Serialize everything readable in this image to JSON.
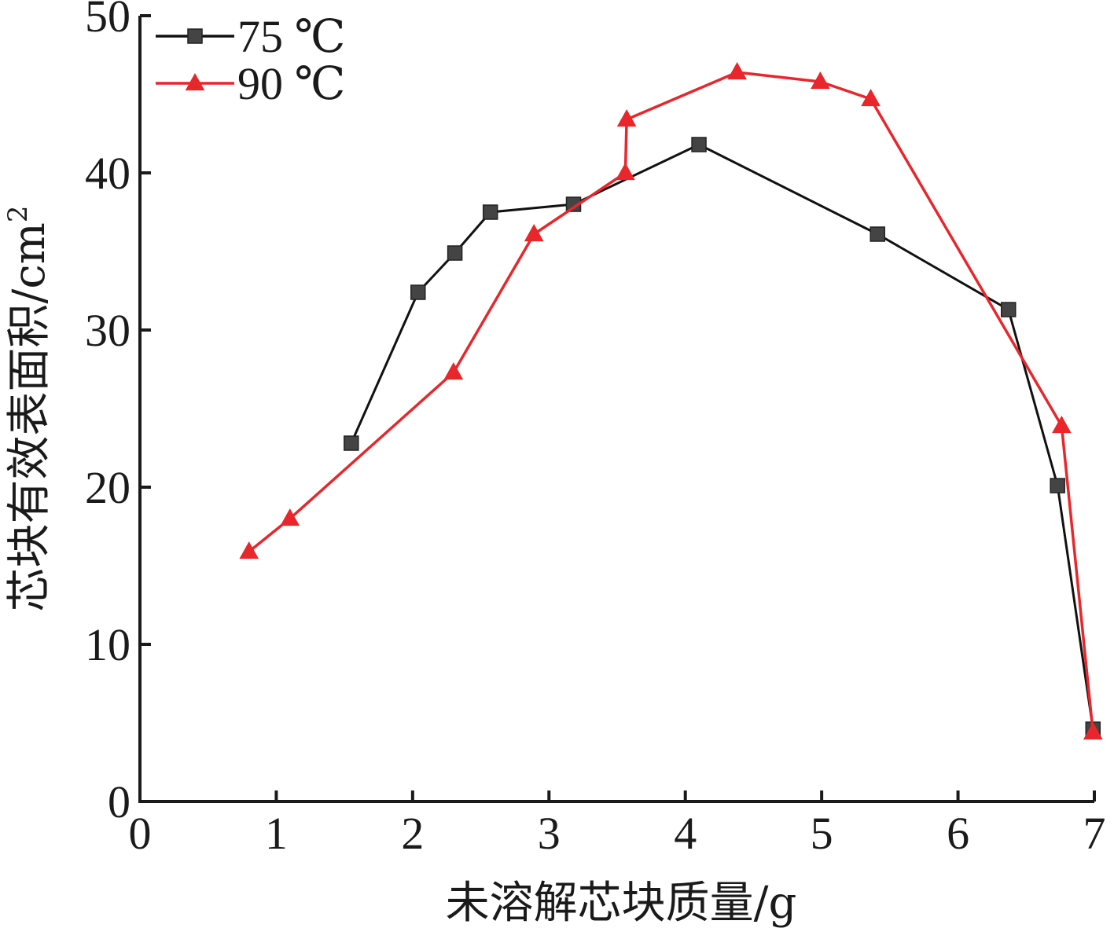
{
  "chart_data": {
    "type": "line",
    "xlabel": "未溶解芯块质量/g",
    "ylabel": "芯块有效表面积/cm",
    "ylabel_sup": "2",
    "xlim": [
      0,
      7
    ],
    "ylim": [
      0,
      50
    ],
    "xticks": [
      0,
      1,
      2,
      3,
      4,
      5,
      6,
      7
    ],
    "yticks": [
      0,
      10,
      20,
      30,
      40,
      50
    ],
    "grid": false,
    "legend_position": "top-left",
    "series": [
      {
        "name": "75 ℃",
        "color": "#111111",
        "marker": "square",
        "marker_color": "#444444",
        "points": [
          {
            "x": 1.55,
            "y": 22.8
          },
          {
            "x": 2.04,
            "y": 32.4
          },
          {
            "x": 2.31,
            "y": 34.9
          },
          {
            "x": 2.57,
            "y": 37.5
          },
          {
            "x": 3.18,
            "y": 38.0
          },
          {
            "x": 4.1,
            "y": 41.8
          },
          {
            "x": 5.41,
            "y": 36.1
          },
          {
            "x": 6.37,
            "y": 31.3
          },
          {
            "x": 6.73,
            "y": 20.1
          },
          {
            "x": 6.99,
            "y": 4.6
          }
        ]
      },
      {
        "name": "90 ℃",
        "color": "#e8262b",
        "marker": "triangle",
        "marker_color": "#e8262b",
        "points": [
          {
            "x": 0.8,
            "y": 15.9
          },
          {
            "x": 1.1,
            "y": 18.0
          },
          {
            "x": 2.3,
            "y": 27.3
          },
          {
            "x": 2.89,
            "y": 36.1
          },
          {
            "x": 3.56,
            "y": 40.0
          },
          {
            "x": 3.57,
            "y": 43.4
          },
          {
            "x": 4.38,
            "y": 46.4
          },
          {
            "x": 4.99,
            "y": 45.8
          },
          {
            "x": 5.36,
            "y": 44.7
          },
          {
            "x": 6.76,
            "y": 23.9
          },
          {
            "x": 6.99,
            "y": 4.4
          }
        ]
      }
    ]
  }
}
